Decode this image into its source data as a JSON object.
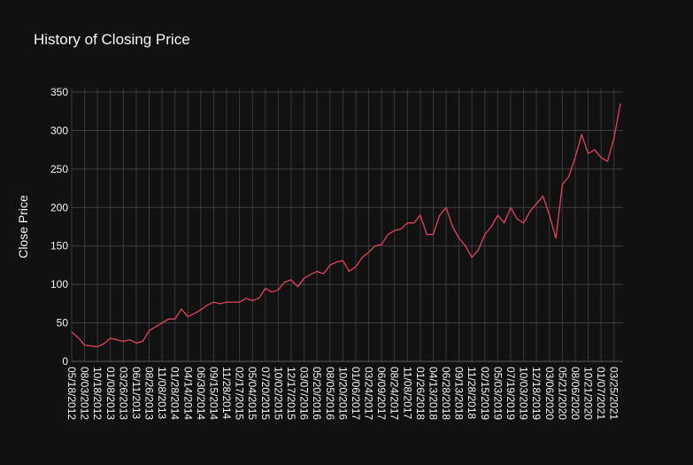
{
  "chart_data": {
    "type": "line",
    "title": "History of Closing Price",
    "y_label": "Close Price",
    "categories": [
      "05/18/2012",
      null,
      "08/03/2012",
      null,
      "10/18/2012",
      null,
      "01/08/2013",
      null,
      "03/26/2013",
      null,
      "06/11/2013",
      null,
      "08/26/2013",
      null,
      "11/08/2013",
      null,
      "01/28/2014",
      null,
      "04/14/2014",
      null,
      "06/30/2014",
      null,
      "09/15/2014",
      null,
      "11/28/2014",
      null,
      "02/17/2015",
      null,
      "05/04/2015",
      null,
      "07/20/2015",
      null,
      "10/02/2015",
      null,
      "12/17/2015",
      null,
      "03/07/2016",
      null,
      "05/20/2016",
      null,
      "08/05/2016",
      null,
      "10/20/2016",
      null,
      "01/06/2017",
      null,
      "03/24/2017",
      null,
      "06/09/2017",
      null,
      "08/24/2017",
      null,
      "11/08/2017",
      null,
      "01/26/2018",
      null,
      "04/13/2018",
      null,
      "06/28/2018",
      null,
      "09/13/2018",
      null,
      "11/28/2018",
      null,
      "02/15/2019",
      null,
      "05/03/2019",
      null,
      "07/19/2019",
      null,
      "10/03/2019",
      null,
      "12/18/2019",
      null,
      "03/06/2020",
      null,
      "05/21/2020",
      null,
      "08/06/2020",
      null,
      "10/21/2020",
      null,
      "01/07/2021",
      null,
      "03/25/2021",
      null
    ],
    "series": [
      {
        "name": "Close",
        "color": "#e3425a",
        "values": [
          38,
          31,
          21,
          20,
          19,
          23,
          30,
          28,
          26,
          28,
          24,
          26,
          40,
          45,
          50,
          55,
          55,
          68,
          58,
          62,
          67,
          73,
          77,
          75,
          77,
          77,
          77,
          82,
          79,
          82,
          95,
          90,
          93,
          103,
          106,
          97,
          108,
          113,
          117,
          114,
          125,
          129,
          131,
          117,
          123,
          135,
          142,
          150,
          152,
          165,
          170,
          172,
          180,
          180,
          190,
          165,
          165,
          190,
          200,
          175,
          160,
          150,
          135,
          145,
          165,
          175,
          190,
          180,
          200,
          185,
          180,
          195,
          205,
          215,
          190,
          160,
          230,
          240,
          265,
          295,
          270,
          275,
          265,
          260,
          290,
          335
        ]
      }
    ],
    "ylim": [
      0,
      350
    ],
    "yticks": [
      0,
      50,
      100,
      150,
      200,
      250,
      300,
      350
    ],
    "grid": true
  }
}
